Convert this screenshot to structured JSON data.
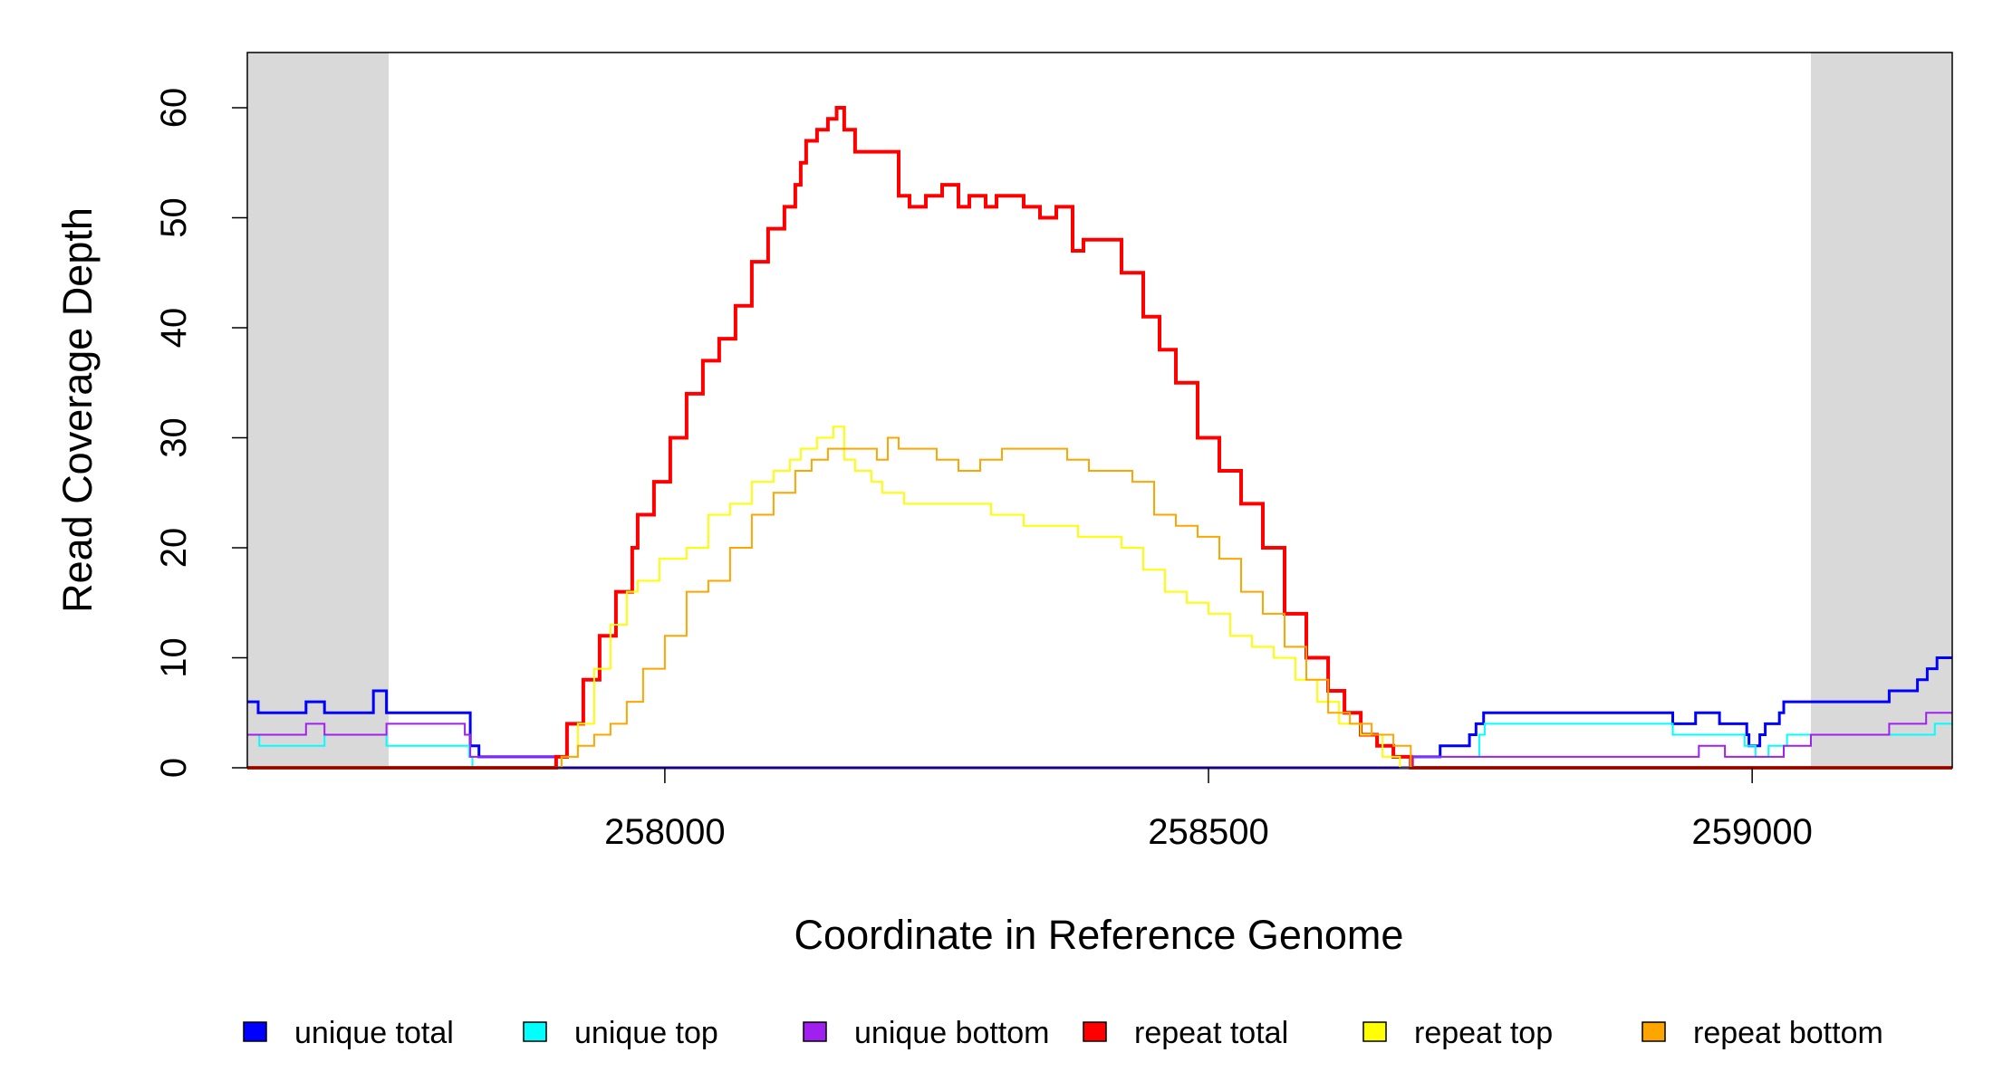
{
  "chart_data": {
    "type": "line",
    "title": "",
    "xlabel": "Coordinate in Reference Genome",
    "ylabel": "Read Coverage Depth",
    "xlim": [
      257616,
      259184
    ],
    "ylim": [
      0,
      65
    ],
    "x_ticks": [
      258000,
      258500,
      259000
    ],
    "x_tick_labels": [
      "258000",
      "258500",
      "259000"
    ],
    "y_ticks": [
      0,
      10,
      20,
      30,
      40,
      50,
      60
    ],
    "y_tick_labels": [
      "0",
      "10",
      "20",
      "30",
      "40",
      "50",
      "60"
    ],
    "shaded_regions": [
      [
        257616,
        257746
      ],
      [
        259054,
        259184
      ]
    ],
    "shade_color": "#d9d9d9",
    "grid": false,
    "legend_position": "bottom",
    "series": [
      {
        "name": "unique total",
        "color": "#0000ff",
        "x": [
          257616,
          257626,
          257670,
          257687,
          257732,
          257744,
          257816,
          257821,
          257829,
          257900,
          258686,
          258713,
          258740,
          258746,
          258753,
          258927,
          258948,
          258970,
          258995,
          258997,
          259007,
          259012,
          259025,
          259029,
          259047,
          259126,
          259152,
          259161,
          259170,
          259184
        ],
        "y": [
          6,
          5,
          6,
          5,
          7,
          5,
          5,
          2,
          1,
          0,
          1,
          2,
          3,
          4,
          5,
          4,
          5,
          4,
          3,
          2,
          3,
          4,
          5,
          6,
          6,
          7,
          8,
          9,
          10,
          10
        ]
      },
      {
        "name": "unique top",
        "color": "#00ffff",
        "x": [
          257616,
          257627,
          257687,
          257744,
          257816,
          257820,
          257823,
          258686,
          258713,
          258749,
          258754,
          258927,
          258978,
          258993,
          259003,
          259015,
          259032,
          259054,
          259150,
          259168,
          259184
        ],
        "y": [
          3,
          2,
          3,
          2,
          2,
          1,
          0,
          1,
          1,
          3,
          4,
          3,
          3,
          2,
          1,
          2,
          3,
          3,
          3,
          4,
          4
        ],
        "stroke_width": 2
      },
      {
        "name": "unique bottom",
        "color": "#a020f0",
        "x": [
          257616,
          257670,
          257687,
          257744,
          257816,
          257821,
          257829,
          257900,
          258688,
          258713,
          258930,
          258951,
          258975,
          258993,
          258999,
          259029,
          259054,
          259126,
          259160,
          259184
        ],
        "y": [
          3,
          4,
          3,
          4,
          3,
          1,
          1,
          0,
          1,
          1,
          1,
          2,
          1,
          1,
          1,
          2,
          3,
          4,
          5,
          5
        ],
        "stroke_width": 2
      },
      {
        "name": "repeat total",
        "color": "#ff0000",
        "x": [
          257616,
          257897,
          257900,
          257910,
          257925,
          257940,
          257955,
          257970,
          257975,
          257990,
          258005,
          258020,
          258035,
          258050,
          258065,
          258080,
          258095,
          258110,
          258120,
          258125,
          258130,
          258140,
          258150,
          258158,
          258165,
          258175,
          258190,
          258200,
          258215,
          258225,
          258240,
          258255,
          258270,
          258280,
          258295,
          258305,
          258330,
          258345,
          258360,
          258375,
          258385,
          258400,
          258420,
          258440,
          258455,
          258470,
          258490,
          258510,
          258530,
          258550,
          258570,
          258590,
          258610,
          258625,
          258640,
          258655,
          258670,
          258686,
          259184
        ],
        "y": [
          0,
          0,
          1,
          4,
          8,
          12,
          16,
          20,
          23,
          26,
          30,
          34,
          37,
          39,
          42,
          46,
          49,
          51,
          53,
          55,
          57,
          58,
          59,
          60,
          58,
          56,
          56,
          56,
          52,
          51,
          52,
          53,
          51,
          52,
          51,
          52,
          51,
          50,
          51,
          47,
          48,
          48,
          45,
          41,
          38,
          35,
          30,
          27,
          24,
          20,
          14,
          10,
          7,
          5,
          3,
          2,
          1,
          0,
          0
        ],
        "stroke_width": 4
      },
      {
        "name": "repeat top",
        "color": "#ffff00",
        "x": [
          257616,
          257897,
          257905,
          257920,
          257935,
          257950,
          257965,
          257975,
          257995,
          258020,
          258040,
          258060,
          258080,
          258100,
          258115,
          258125,
          258140,
          258155,
          258165,
          258175,
          258190,
          258200,
          258220,
          258250,
          258280,
          258300,
          258330,
          258350,
          258380,
          258400,
          258420,
          258440,
          258460,
          258480,
          258500,
          258520,
          258540,
          258560,
          258580,
          258600,
          258620,
          258640,
          258660,
          258676,
          258686,
          259184
        ],
        "y": [
          0,
          0,
          1,
          4,
          9,
          13,
          16,
          17,
          19,
          20,
          23,
          24,
          26,
          27,
          28,
          29,
          30,
          31,
          28,
          27,
          26,
          25,
          24,
          24,
          24,
          23,
          22,
          22,
          21,
          21,
          20,
          18,
          16,
          15,
          14,
          12,
          11,
          10,
          8,
          6,
          4,
          3,
          1,
          0,
          0,
          0
        ],
        "stroke_width": 2
      },
      {
        "name": "repeat bottom",
        "color": "#ffa500",
        "x": [
          257616,
          257897,
          257905,
          257920,
          257935,
          257950,
          257965,
          257980,
          258000,
          258020,
          258040,
          258060,
          258080,
          258100,
          258120,
          258135,
          258150,
          258165,
          258180,
          258195,
          258205,
          258215,
          258230,
          258250,
          258270,
          258290,
          258310,
          258330,
          258350,
          258370,
          258390,
          258410,
          258430,
          258450,
          258470,
          258490,
          258510,
          258530,
          258550,
          258570,
          258590,
          258610,
          258630,
          258650,
          258670,
          258686,
          259184
        ],
        "y": [
          0,
          0,
          1,
          2,
          3,
          4,
          6,
          9,
          12,
          16,
          17,
          20,
          23,
          25,
          27,
          28,
          29,
          29,
          29,
          28,
          30,
          29,
          29,
          28,
          27,
          28,
          29,
          29,
          29,
          28,
          27,
          27,
          26,
          23,
          22,
          21,
          19,
          16,
          14,
          11,
          8,
          5,
          4,
          3,
          2,
          0,
          0
        ],
        "stroke_width": 2
      }
    ]
  }
}
